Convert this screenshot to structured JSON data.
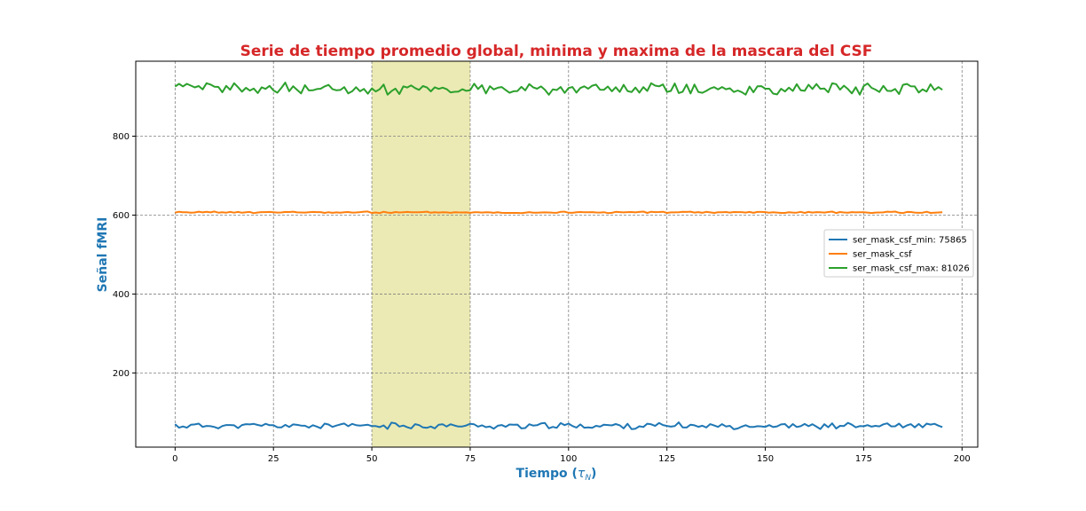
{
  "chart_data": {
    "type": "line",
    "title": "Serie de tiempo promedio global, minima y maxima de la mascara del CSF",
    "xlabel_main": "Tiempo (",
    "xlabel_symbol": "τ",
    "xlabel_sub": "N",
    "xlabel_close": ")",
    "ylabel": "Señal fMRI",
    "xlim": [
      -10,
      204
    ],
    "ylim": [
      12,
      990
    ],
    "x_ticks": [
      0,
      25,
      50,
      75,
      100,
      125,
      150,
      175,
      200
    ],
    "x_tick_labels": [
      "0",
      "25",
      "50",
      "75",
      "100",
      "125",
      "150",
      "175",
      "200"
    ],
    "y_ticks": [
      200,
      400,
      600,
      800
    ],
    "y_tick_labels": [
      "200",
      "400",
      "600",
      "800"
    ],
    "grid": true,
    "legend_position": "center-right",
    "shaded_region": {
      "x_start": 50,
      "x_end": 75,
      "color": "#e8e6a7"
    },
    "colors": {
      "title": "#d62728",
      "axis_labels": "#1f77b4",
      "grid": "#808080"
    },
    "series": [
      {
        "name": "ser_mask_csf_min: 75865",
        "color": "#1f77b4",
        "base": 66,
        "amplitude": 6,
        "seed": 11
      },
      {
        "name": "ser_mask_csf",
        "color": "#ff7f0e",
        "base": 607,
        "amplitude": 1.6,
        "seed": 23
      },
      {
        "name": "ser_mask_csf_max: 81026",
        "color": "#2ca02c",
        "base": 920,
        "amplitude": 11,
        "seed": 37
      }
    ],
    "n_points": 196
  }
}
